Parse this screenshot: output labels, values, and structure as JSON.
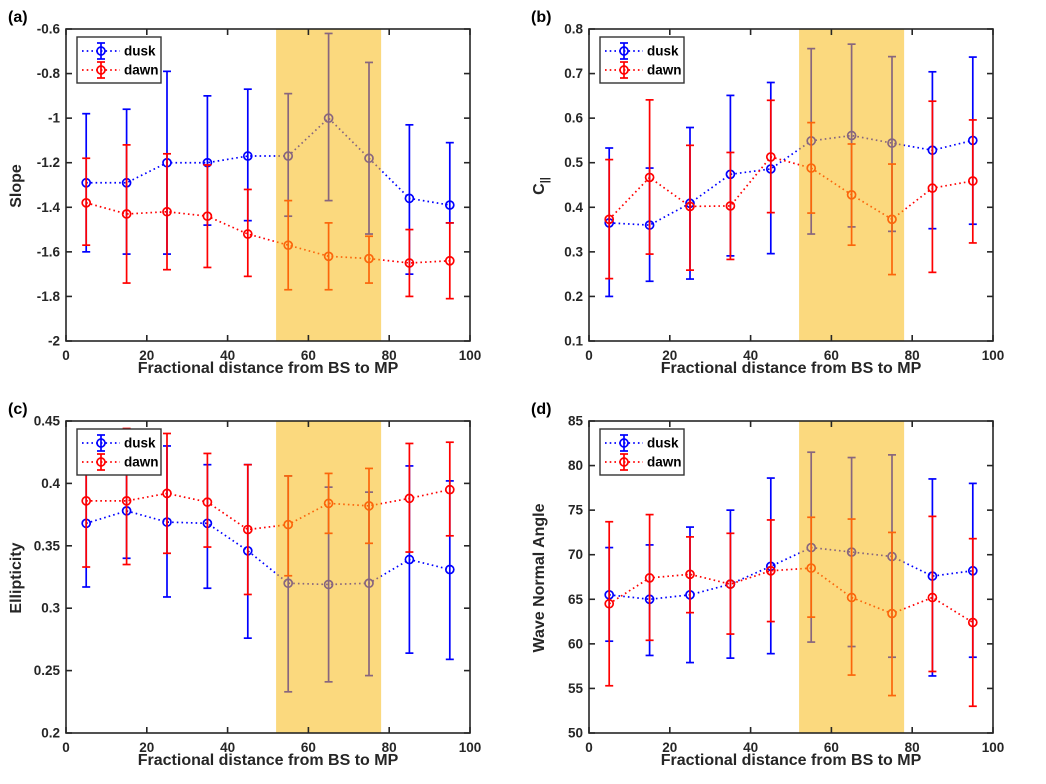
{
  "figure": {
    "background": "#ffffff",
    "axis_color": "#262626"
  },
  "band": {
    "x_start": 52,
    "x_end": 78,
    "color": "#F8BA14",
    "opacity": 0.55
  },
  "legend": {
    "entries": [
      {
        "label": "dusk"
      },
      {
        "label": "dawn"
      }
    ]
  },
  "chart_data": [
    {
      "type": "line",
      "letter": "(a)",
      "ylabel": "Slope",
      "ylabel_sub": "",
      "xlabel": "Fractional distance from BS to MP",
      "xlim": [
        0,
        100
      ],
      "ylim": [
        -2,
        -0.6
      ],
      "xticks": {
        "values": [
          0,
          20,
          40,
          60,
          80,
          100
        ],
        "labels": [
          "0",
          "20",
          "40",
          "60",
          "80",
          "100"
        ]
      },
      "yticks": {
        "values": [
          -0.6,
          -0.8,
          -1,
          -1.2,
          -1.4,
          -1.6,
          -1.8,
          -2
        ],
        "labels": [
          "-0.6",
          "-0.8",
          "-1",
          "-1.2",
          "-1.4",
          "-1.6",
          "-1.8",
          "-2"
        ]
      },
      "highlight_band": [
        52,
        78
      ],
      "series": [
        {
          "name": "dusk",
          "color": "#0000FF",
          "x": [
            5,
            15,
            25,
            35,
            45,
            55,
            65,
            75,
            85,
            95
          ],
          "y": [
            -1.29,
            -1.29,
            -1.2,
            -1.2,
            -1.17,
            -1.17,
            -1.0,
            -1.18,
            -1.36,
            -1.39
          ],
          "err_lo": [
            -1.6,
            -1.61,
            -1.61,
            -1.48,
            -1.46,
            -1.44,
            -1.37,
            -1.52,
            -1.7,
            -1.47
          ],
          "err_hi": [
            -0.98,
            -0.96,
            -0.79,
            -0.9,
            -0.87,
            -0.89,
            -0.62,
            -0.75,
            -1.03,
            -1.11
          ]
        },
        {
          "name": "dawn",
          "color": "#FF0000",
          "x": [
            5,
            15,
            25,
            35,
            45,
            55,
            65,
            75,
            85,
            95
          ],
          "y": [
            -1.38,
            -1.43,
            -1.42,
            -1.44,
            -1.52,
            -1.57,
            -1.62,
            -1.63,
            -1.65,
            -1.64
          ],
          "err_lo": [
            -1.57,
            -1.74,
            -1.68,
            -1.67,
            -1.71,
            -1.77,
            -1.77,
            -1.74,
            -1.8,
            -1.81
          ],
          "err_hi": [
            -1.18,
            -1.12,
            -1.16,
            -1.21,
            -1.32,
            -1.37,
            -1.47,
            -1.53,
            -1.5,
            -1.47
          ]
        }
      ]
    },
    {
      "type": "line",
      "letter": "(b)",
      "ylabel": "C",
      "ylabel_sub": "||",
      "xlabel": "Fractional distance from BS to MP",
      "xlim": [
        0,
        100
      ],
      "ylim": [
        0.1,
        0.8
      ],
      "xticks": {
        "values": [
          0,
          20,
          40,
          60,
          80,
          100
        ],
        "labels": [
          "0",
          "20",
          "40",
          "60",
          "80",
          "100"
        ]
      },
      "yticks": {
        "values": [
          0.8,
          0.7,
          0.6,
          0.5,
          0.4,
          0.3,
          0.2,
          0.1
        ],
        "labels": [
          "0.8",
          "0.7",
          "0.6",
          "0.5",
          "0.4",
          "0.3",
          "0.2",
          "0.1"
        ]
      },
      "highlight_band": [
        52,
        78
      ],
      "series": [
        {
          "name": "dusk",
          "color": "#0000FF",
          "x": [
            5,
            15,
            25,
            35,
            45,
            55,
            65,
            75,
            85,
            95
          ],
          "y": [
            0.365,
            0.36,
            0.409,
            0.474,
            0.486,
            0.549,
            0.561,
            0.544,
            0.528,
            0.55
          ],
          "err_lo": [
            0.2,
            0.234,
            0.239,
            0.291,
            0.296,
            0.34,
            0.356,
            0.346,
            0.352,
            0.362
          ],
          "err_hi": [
            0.533,
            0.488,
            0.579,
            0.651,
            0.68,
            0.756,
            0.766,
            0.738,
            0.704,
            0.737
          ]
        },
        {
          "name": "dawn",
          "color": "#FF0000",
          "x": [
            5,
            15,
            25,
            35,
            45,
            55,
            65,
            75,
            85,
            95
          ],
          "y": [
            0.373,
            0.467,
            0.402,
            0.403,
            0.513,
            0.488,
            0.428,
            0.373,
            0.443,
            0.459
          ],
          "err_lo": [
            0.24,
            0.295,
            0.259,
            0.283,
            0.388,
            0.387,
            0.315,
            0.249,
            0.254,
            0.32
          ],
          "err_hi": [
            0.507,
            0.641,
            0.539,
            0.523,
            0.64,
            0.59,
            0.542,
            0.497,
            0.638,
            0.596
          ]
        }
      ]
    },
    {
      "type": "line",
      "letter": "(c)",
      "ylabel": "Ellipticity",
      "ylabel_sub": "",
      "xlabel": "Fractional distance from BS to MP",
      "xlim": [
        0,
        100
      ],
      "ylim": [
        0.2,
        0.45
      ],
      "xticks": {
        "values": [
          0,
          20,
          40,
          60,
          80,
          100
        ],
        "labels": [
          "0",
          "20",
          "40",
          "60",
          "80",
          "100"
        ]
      },
      "yticks": {
        "values": [
          0.45,
          0.4,
          0.35,
          0.3,
          0.25,
          0.2
        ],
        "labels": [
          "0.45",
          "0.4",
          "0.35",
          "0.3",
          "0.25",
          "0.2"
        ]
      },
      "highlight_band": [
        52,
        78
      ],
      "series": [
        {
          "name": "dusk",
          "color": "#0000FF",
          "x": [
            5,
            15,
            25,
            35,
            45,
            55,
            65,
            75,
            85,
            95
          ],
          "y": [
            0.368,
            0.378,
            0.369,
            0.368,
            0.346,
            0.32,
            0.319,
            0.32,
            0.339,
            0.331
          ],
          "err_lo": [
            0.317,
            0.34,
            0.309,
            0.316,
            0.276,
            0.233,
            0.241,
            0.246,
            0.264,
            0.259
          ],
          "err_hi": [
            0.419,
            0.416,
            0.43,
            0.415,
            0.415,
            0.406,
            0.397,
            0.393,
            0.414,
            0.402
          ]
        },
        {
          "name": "dawn",
          "color": "#FF0000",
          "x": [
            5,
            15,
            25,
            35,
            45,
            55,
            65,
            75,
            85,
            95
          ],
          "y": [
            0.386,
            0.386,
            0.392,
            0.385,
            0.363,
            0.367,
            0.384,
            0.382,
            0.388,
            0.395
          ],
          "err_lo": [
            0.333,
            0.335,
            0.344,
            0.349,
            0.311,
            0.326,
            0.36,
            0.352,
            0.345,
            0.358
          ],
          "err_hi": [
            0.438,
            0.444,
            0.44,
            0.424,
            0.415,
            0.406,
            0.408,
            0.412,
            0.432,
            0.433
          ]
        }
      ]
    },
    {
      "type": "line",
      "letter": "(d)",
      "ylabel": "Wave Normal Angle",
      "ylabel_sub": "",
      "xlabel": "Fractional distance from BS to MP",
      "xlim": [
        0,
        100
      ],
      "ylim": [
        50,
        85
      ],
      "xticks": {
        "values": [
          0,
          20,
          40,
          60,
          80,
          100
        ],
        "labels": [
          "0",
          "20",
          "40",
          "60",
          "80",
          "100"
        ]
      },
      "yticks": {
        "values": [
          85,
          80,
          75,
          70,
          65,
          60,
          55,
          50
        ],
        "labels": [
          "85",
          "80",
          "75",
          "70",
          "65",
          "60",
          "55",
          "50"
        ]
      },
      "highlight_band": [
        52,
        78
      ],
      "series": [
        {
          "name": "dusk",
          "color": "#0000FF",
          "x": [
            5,
            15,
            25,
            35,
            45,
            55,
            65,
            75,
            85,
            95
          ],
          "y": [
            65.5,
            65.0,
            65.5,
            66.7,
            68.7,
            70.8,
            70.3,
            69.8,
            67.6,
            68.2
          ],
          "err_lo": [
            60.3,
            58.7,
            57.9,
            58.4,
            58.9,
            60.2,
            59.7,
            58.5,
            56.4,
            58.5
          ],
          "err_hi": [
            70.8,
            71.1,
            73.1,
            75.0,
            78.6,
            81.5,
            80.9,
            81.2,
            78.5,
            78.0
          ]
        },
        {
          "name": "dawn",
          "color": "#FF0000",
          "x": [
            5,
            15,
            25,
            35,
            45,
            55,
            65,
            75,
            85,
            95
          ],
          "y": [
            64.5,
            67.4,
            67.8,
            66.7,
            68.2,
            68.5,
            65.2,
            63.4,
            65.2,
            62.4
          ],
          "err_lo": [
            55.3,
            60.4,
            63.5,
            61.1,
            62.5,
            63.0,
            56.5,
            54.2,
            56.9,
            53.0
          ],
          "err_hi": [
            73.7,
            74.5,
            72.0,
            72.4,
            73.9,
            74.2,
            74.0,
            72.5,
            74.3,
            71.8
          ]
        }
      ]
    }
  ]
}
